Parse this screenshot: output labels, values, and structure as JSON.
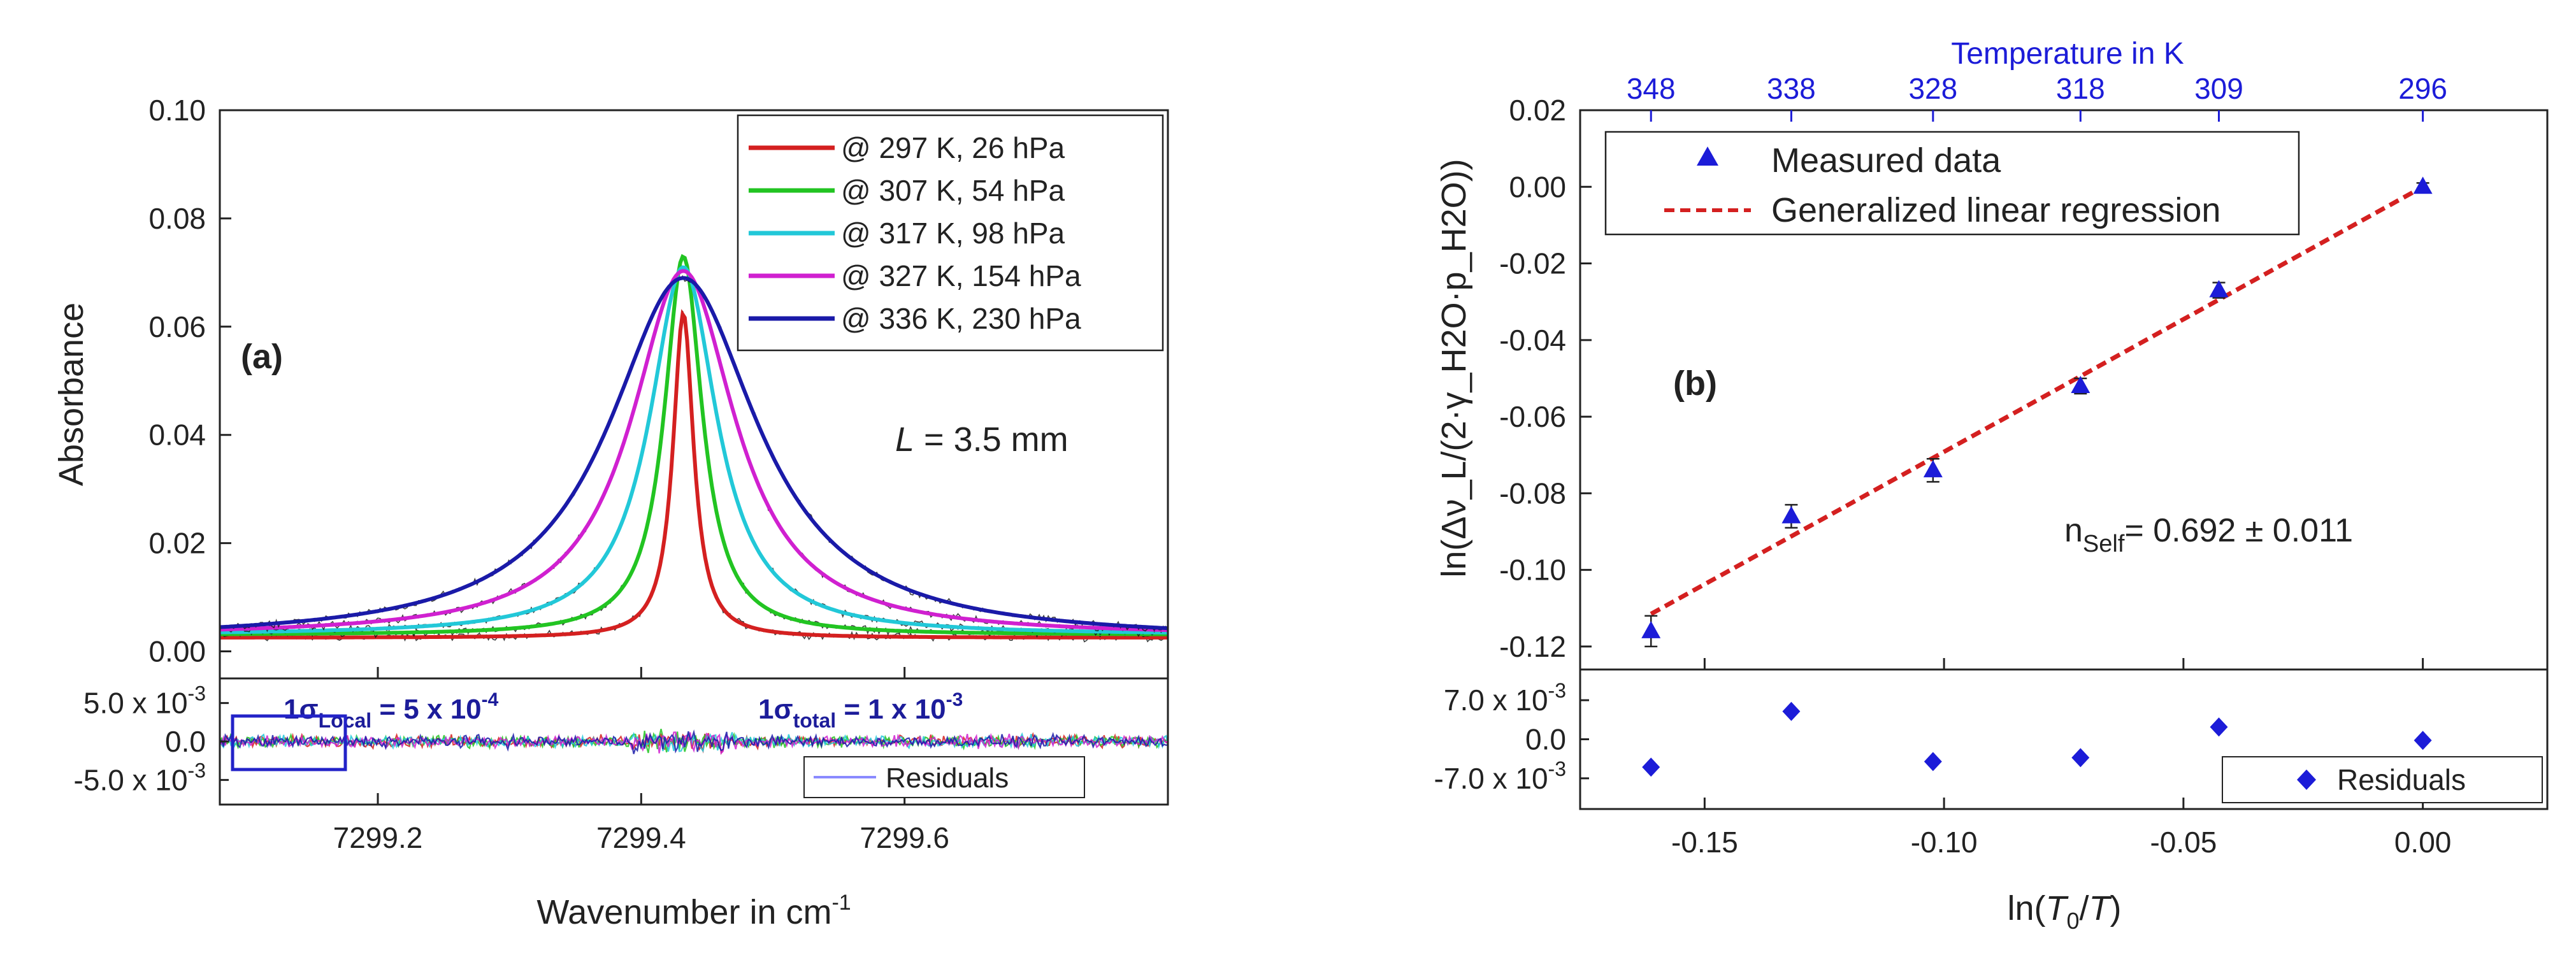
{
  "chart_data": [
    {
      "panel": "a",
      "type": "line",
      "panel_label": "(a)",
      "xlabel": "Wavenumber in cm",
      "xlabel_sup": "-1",
      "ylabel": "Absorbance",
      "xlim": [
        7299.08,
        7299.8
      ],
      "ylim": [
        -0.005,
        0.1
      ],
      "xticks": [
        7299.2,
        7299.4,
        7299.6
      ],
      "xtick_labels": [
        "7299.2",
        "7299.4",
        "7299.6"
      ],
      "yticks": [
        0.0,
        0.02,
        0.04,
        0.06,
        0.08,
        0.1
      ],
      "ytick_labels": [
        "0.00",
        "0.02",
        "0.04",
        "0.06",
        "0.08",
        "0.10"
      ],
      "annotation": {
        "var": "L",
        "text": " = 3.5 mm"
      },
      "line_center": 7299.432,
      "series": [
        {
          "name": "@ 297 K, 26 hPa",
          "color": "#d42020",
          "peak": 0.06,
          "hwhm": 0.0095,
          "baseline": 0.0025
        },
        {
          "name": "@ 307 K, 54 hPa",
          "color": "#22c422",
          "peak": 0.07,
          "hwhm": 0.0175,
          "baseline": 0.003
        },
        {
          "name": "@ 317 K, 98 hPa",
          "color": "#22c8d8",
          "peak": 0.068,
          "hwhm": 0.031,
          "baseline": 0.003
        },
        {
          "name": "@ 327 K, 154 hPa",
          "color": "#d020d0",
          "peak": 0.0675,
          "hwhm": 0.048,
          "baseline": 0.0028
        },
        {
          "name": "@ 336 K, 230 hPa",
          "color": "#1a1aa8",
          "peak": 0.067,
          "hwhm": 0.069,
          "baseline": 0.002
        }
      ],
      "residuals": {
        "ylim": [
          -0.0082,
          0.0082
        ],
        "ytick_labels": [
          {
            "value": 0.005,
            "mant": "5.0 x 10",
            "exp": "-3"
          },
          {
            "value": 0.0,
            "mant": "0.0",
            "exp": ""
          },
          {
            "value": -0.005,
            "mant": "-5.0 x 10",
            "exp": "-3"
          }
        ],
        "legend": "Residuals",
        "sigma_local": {
          "pre": "1σ",
          "sub": "Local",
          "mid": " = 5 x 10",
          "sup": "-4"
        },
        "sigma_total": {
          "pre": "1σ",
          "sub": "total",
          "mid": " = 1 x 10",
          "sup": "-3"
        }
      }
    },
    {
      "panel": "b",
      "type": "scatter",
      "panel_label": "(b)",
      "xlabel_parts": [
        "ln(",
        "T",
        "0",
        "/",
        "T",
        ")"
      ],
      "ylabel": "ln(Δν_L/(2·γ_H2O·p_H2O))",
      "top_xlabel": "Temperature in K",
      "xlim": [
        -0.176,
        0.026
      ],
      "ylim": [
        -0.126,
        0.02
      ],
      "xticks": [
        -0.15,
        -0.1,
        -0.05,
        0.0
      ],
      "xtick_labels": [
        "-0.15",
        "-0.10",
        "-0.05",
        "0.00"
      ],
      "yticks": [
        -0.12,
        -0.1,
        -0.08,
        -0.06,
        -0.04,
        -0.02,
        0.0,
        0.02
      ],
      "ytick_labels": [
        "-0.12",
        "-0.10",
        "-0.08",
        "-0.06",
        "-0.04",
        "-0.02",
        "0.00",
        "0.02"
      ],
      "top_ticks": [
        {
          "x": -0.1612,
          "label": "348"
        },
        {
          "x": -0.1319,
          "label": "338"
        },
        {
          "x": -0.1023,
          "label": "328"
        },
        {
          "x": -0.0715,
          "label": "318"
        },
        {
          "x": -0.0426,
          "label": "309"
        },
        {
          "x": 0.0,
          "label": "296"
        }
      ],
      "series": [
        {
          "name": "Measured data",
          "color": "#1c1cd8",
          "x": [
            -0.1612,
            -0.1319,
            -0.1023,
            -0.0715,
            -0.0426,
            0.0
          ],
          "y": [
            -0.116,
            -0.086,
            -0.074,
            -0.052,
            -0.027,
            0.0
          ],
          "yerr": [
            0.004,
            0.003,
            0.003,
            0.002,
            0.002,
            0.001
          ]
        },
        {
          "name": "Generalized linear regression",
          "color": "#d42020",
          "style": "dashed",
          "x": [
            -0.1612,
            0.0
          ],
          "y": [
            -0.1115,
            0.0
          ]
        }
      ],
      "annotation": {
        "pre": "n",
        "sub": "Self",
        "text": "= 0.692 ± 0.011"
      },
      "residuals": {
        "ylim": [
          -0.0125,
          0.0125
        ],
        "x": [
          -0.1612,
          -0.1319,
          -0.1023,
          -0.0715,
          -0.0426,
          0.0
        ],
        "y": [
          -0.005,
          0.005,
          -0.004,
          -0.0033,
          0.0022,
          -0.0002
        ],
        "ytick_labels": [
          {
            "value": 0.007,
            "mant": "7.0 x 10",
            "exp": "-3"
          },
          {
            "value": 0.0,
            "mant": "0.0",
            "exp": ""
          },
          {
            "value": -0.007,
            "mant": "-7.0 x 10",
            "exp": "-3"
          }
        ],
        "legend": "Residuals"
      }
    }
  ]
}
